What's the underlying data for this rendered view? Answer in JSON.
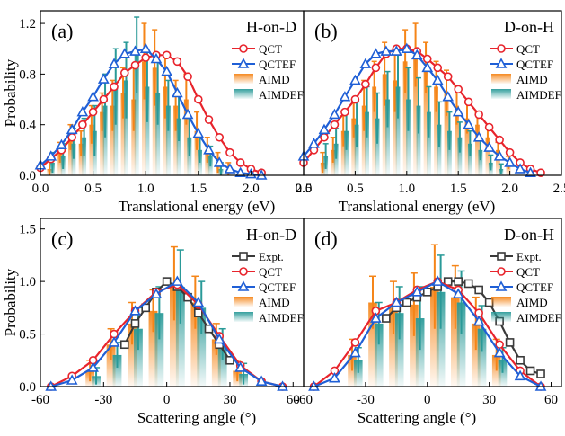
{
  "colors": {
    "qct": "#e8242c",
    "qctef": "#1f5fd6",
    "aimd": "#f58518",
    "aimdef": "#2a9a98",
    "expt": "#3a3a3a"
  },
  "chart_data": [
    {
      "type": "bar",
      "panel_label": "(a)",
      "system": "H-on-D",
      "xlabel": "Translational energy (eV)",
      "ylabel": "Probability",
      "xlim": [
        0,
        2.5
      ],
      "ylim": [
        0,
        1.3
      ],
      "xticks": [
        "0.0",
        "0.5",
        "1.0",
        "1.5",
        "2.0",
        "2.5"
      ],
      "yticks": [
        "0.0",
        "0.4",
        "0.8",
        "1.2"
      ],
      "xtick_values": [
        0,
        0.5,
        1,
        1.5,
        2,
        2.5
      ],
      "ytick_values": [
        0,
        0.4,
        0.8,
        1.2
      ],
      "legend": [
        "QCT",
        "QCTEF",
        "AIMD",
        "AIMDEF"
      ],
      "series": [
        {
          "name": "QCT",
          "kind": "line",
          "marker": "circle",
          "x": [
            0.0,
            0.1,
            0.2,
            0.3,
            0.4,
            0.5,
            0.6,
            0.7,
            0.8,
            0.9,
            1.0,
            1.1,
            1.2,
            1.3,
            1.4,
            1.5,
            1.6,
            1.7,
            1.8,
            1.9,
            2.0,
            2.1
          ],
          "y": [
            0.06,
            0.13,
            0.2,
            0.3,
            0.4,
            0.5,
            0.6,
            0.7,
            0.81,
            0.87,
            0.93,
            0.95,
            0.95,
            0.9,
            0.78,
            0.6,
            0.44,
            0.3,
            0.18,
            0.1,
            0.05,
            0.02
          ]
        },
        {
          "name": "QCTEF",
          "kind": "line",
          "marker": "triangle",
          "x": [
            0.0,
            0.1,
            0.2,
            0.3,
            0.4,
            0.5,
            0.6,
            0.7,
            0.8,
            0.9,
            1.0,
            1.1,
            1.2,
            1.3,
            1.4,
            1.5,
            1.6,
            1.7,
            1.8,
            1.9,
            2.0,
            2.1
          ],
          "y": [
            0.08,
            0.15,
            0.24,
            0.36,
            0.5,
            0.62,
            0.76,
            0.88,
            0.96,
            0.98,
            1.0,
            0.92,
            0.82,
            0.65,
            0.48,
            0.33,
            0.2,
            0.1,
            0.05,
            0.02,
            0.01,
            0.0
          ]
        },
        {
          "name": "AIMD",
          "kind": "bar",
          "x": [
            0.1,
            0.2,
            0.3,
            0.4,
            0.5,
            0.6,
            0.7,
            0.8,
            0.9,
            1.0,
            1.1,
            1.2,
            1.3,
            1.4,
            1.5,
            1.6,
            1.7,
            1.8
          ],
          "y": [
            0.05,
            0.18,
            0.3,
            0.25,
            0.4,
            0.5,
            0.55,
            0.65,
            0.6,
            0.9,
            0.85,
            0.7,
            0.55,
            0.6,
            0.35,
            0.2,
            0.1,
            0.05
          ],
          "err": [
            0.06,
            0.08,
            0.1,
            0.1,
            0.15,
            0.15,
            0.2,
            0.2,
            0.25,
            0.3,
            0.3,
            0.25,
            0.2,
            0.2,
            0.15,
            0.1,
            0.08,
            0.05
          ]
        },
        {
          "name": "AIMDEF",
          "kind": "bar",
          "x": [
            0.1,
            0.2,
            0.3,
            0.4,
            0.5,
            0.6,
            0.7,
            0.8,
            0.9,
            1.0,
            1.1,
            1.2,
            1.3,
            1.4,
            1.5,
            1.6,
            1.7
          ],
          "y": [
            0.1,
            0.15,
            0.25,
            0.3,
            0.35,
            0.55,
            0.7,
            0.75,
            0.95,
            0.7,
            0.65,
            0.55,
            0.45,
            0.3,
            0.2,
            0.15,
            0.05
          ],
          "err": [
            0.08,
            0.1,
            0.12,
            0.15,
            0.2,
            0.25,
            0.3,
            0.3,
            0.3,
            0.28,
            0.25,
            0.2,
            0.18,
            0.15,
            0.1,
            0.08,
            0.05
          ]
        }
      ]
    },
    {
      "type": "bar",
      "panel_label": "(b)",
      "system": "D-on-H",
      "xlabel": "Translational energy (eV)",
      "ylabel": "",
      "xlim": [
        0,
        2.5
      ],
      "ylim": [
        0,
        1.3
      ],
      "xticks": [
        "0.0",
        "0.5",
        "1.0",
        "1.5",
        "2.0",
        "2.5"
      ],
      "yticks": [],
      "xtick_values": [
        0,
        0.5,
        1,
        1.5,
        2,
        2.5
      ],
      "ytick_values": [],
      "legend": [
        "QCT",
        "QCTEF",
        "AIMD",
        "AIMDEF"
      ],
      "series": [
        {
          "name": "QCT",
          "kind": "line",
          "marker": "circle",
          "x": [
            0.0,
            0.1,
            0.2,
            0.3,
            0.4,
            0.5,
            0.6,
            0.7,
            0.8,
            0.9,
            1.0,
            1.1,
            1.2,
            1.3,
            1.4,
            1.5,
            1.6,
            1.7,
            1.8,
            1.9,
            2.0,
            2.1,
            2.2,
            2.3
          ],
          "y": [
            0.1,
            0.2,
            0.3,
            0.4,
            0.5,
            0.6,
            0.72,
            0.85,
            0.96,
            1.0,
            1.0,
            0.98,
            0.92,
            0.85,
            0.78,
            0.68,
            0.58,
            0.48,
            0.38,
            0.28,
            0.18,
            0.1,
            0.05,
            0.02
          ]
        },
        {
          "name": "QCTEF",
          "kind": "line",
          "marker": "triangle",
          "x": [
            0.0,
            0.1,
            0.2,
            0.3,
            0.4,
            0.5,
            0.6,
            0.7,
            0.8,
            0.9,
            1.0,
            1.1,
            1.2,
            1.3,
            1.4,
            1.5,
            1.6,
            1.7,
            1.8,
            1.9,
            2.0,
            2.1,
            2.2
          ],
          "y": [
            0.15,
            0.25,
            0.36,
            0.48,
            0.62,
            0.75,
            0.88,
            0.96,
            0.98,
            0.98,
            1.0,
            0.95,
            0.85,
            0.75,
            0.62,
            0.5,
            0.4,
            0.3,
            0.22,
            0.15,
            0.1,
            0.05,
            0.02
          ]
        },
        {
          "name": "AIMD",
          "kind": "bar",
          "x": [
            0.2,
            0.3,
            0.4,
            0.5,
            0.6,
            0.7,
            0.8,
            0.9,
            1.0,
            1.1,
            1.2,
            1.3,
            1.4,
            1.5,
            1.6,
            1.7,
            1.8,
            1.9,
            2.0
          ],
          "y": [
            0.1,
            0.2,
            0.35,
            0.45,
            0.55,
            0.7,
            0.8,
            0.75,
            0.9,
            0.95,
            0.85,
            0.7,
            0.65,
            0.55,
            0.45,
            0.4,
            0.3,
            0.2,
            0.1
          ],
          "err": [
            0.08,
            0.1,
            0.12,
            0.15,
            0.2,
            0.2,
            0.25,
            0.25,
            0.25,
            0.25,
            0.2,
            0.2,
            0.18,
            0.15,
            0.12,
            0.1,
            0.08,
            0.06,
            0.05
          ]
        },
        {
          "name": "AIMDEF",
          "kind": "bar",
          "x": [
            0.2,
            0.3,
            0.4,
            0.5,
            0.6,
            0.7,
            0.8,
            0.9,
            1.0,
            1.1,
            1.2,
            1.3,
            1.4,
            1.5,
            1.6,
            1.7,
            1.8,
            1.9
          ],
          "y": [
            0.15,
            0.25,
            0.35,
            0.4,
            0.5,
            0.45,
            0.6,
            0.7,
            0.6,
            0.55,
            0.5,
            0.4,
            0.35,
            0.3,
            0.25,
            0.2,
            0.1,
            0.05
          ],
          "err": [
            0.1,
            0.12,
            0.15,
            0.18,
            0.2,
            0.2,
            0.22,
            0.25,
            0.25,
            0.22,
            0.2,
            0.18,
            0.15,
            0.12,
            0.1,
            0.08,
            0.06,
            0.04
          ]
        }
      ]
    },
    {
      "type": "bar",
      "panel_label": "(c)",
      "system": "H-on-D",
      "xlabel": "Scattering angle (°)",
      "ylabel": "Probability",
      "xlim": [
        -60,
        65
      ],
      "ylim": [
        0,
        1.6
      ],
      "xticks": [
        "-60",
        "-30",
        "0",
        "30",
        "60"
      ],
      "yticks": [
        "0.0",
        "0.5",
        "1.0",
        "1.5"
      ],
      "xtick_values": [
        -60,
        -30,
        0,
        30,
        60
      ],
      "ytick_values": [
        0,
        0.5,
        1.0,
        1.5
      ],
      "legend": [
        "Expt.",
        "QCT",
        "QCTEF",
        "AIMD",
        "AIMDEF"
      ],
      "series": [
        {
          "name": "Expt.",
          "kind": "line",
          "marker": "square",
          "x": [
            -20,
            -15,
            -10,
            -5,
            0,
            5,
            10,
            15,
            20,
            25,
            30
          ],
          "y": [
            0.4,
            0.6,
            0.75,
            0.9,
            1.0,
            0.95,
            0.85,
            0.7,
            0.55,
            0.4,
            0.25
          ]
        },
        {
          "name": "QCT",
          "kind": "line",
          "marker": "circle",
          "x": [
            -55,
            -45,
            -35,
            -25,
            -15,
            -5,
            5,
            15,
            25,
            35,
            45,
            55
          ],
          "y": [
            0.0,
            0.1,
            0.25,
            0.5,
            0.72,
            0.9,
            0.97,
            0.78,
            0.48,
            0.2,
            0.05,
            0.0
          ]
        },
        {
          "name": "QCTEF",
          "kind": "line",
          "marker": "triangle",
          "x": [
            -55,
            -45,
            -35,
            -25,
            -15,
            -5,
            5,
            15,
            25,
            35,
            45,
            55
          ],
          "y": [
            0.0,
            0.06,
            0.18,
            0.42,
            0.72,
            0.88,
            1.0,
            0.8,
            0.45,
            0.18,
            0.05,
            0.0
          ]
        },
        {
          "name": "AIMD",
          "kind": "bar",
          "x": [
            -35,
            -25,
            -15,
            -5,
            5,
            15,
            25,
            35
          ],
          "y": [
            0.15,
            0.4,
            0.6,
            0.72,
            0.98,
            0.8,
            0.45,
            0.15
          ],
          "err": [
            0.1,
            0.15,
            0.2,
            0.2,
            0.35,
            0.25,
            0.15,
            0.1
          ]
        },
        {
          "name": "AIMDEF",
          "kind": "bar",
          "x": [
            -35,
            -25,
            -15,
            -5,
            5,
            15,
            25,
            35
          ],
          "y": [
            0.1,
            0.3,
            0.55,
            0.7,
            0.95,
            0.75,
            0.4,
            0.12
          ],
          "err": [
            0.08,
            0.12,
            0.2,
            0.25,
            0.35,
            0.25,
            0.15,
            0.1
          ]
        }
      ]
    },
    {
      "type": "bar",
      "panel_label": "(d)",
      "system": "D-on-H",
      "xlabel": "Scattering angle (°)",
      "ylabel": "",
      "xlim": [
        -60,
        65
      ],
      "ylim": [
        0,
        1.6
      ],
      "xticks": [
        "-60",
        "-30",
        "0",
        "30",
        "60"
      ],
      "yticks": [],
      "xtick_values": [
        -60,
        -30,
        0,
        30,
        60
      ],
      "ytick_values": [],
      "legend": [
        "Expt.",
        "QCT",
        "QCTEF",
        "AIMD",
        "AIMDEF"
      ],
      "series": [
        {
          "name": "Expt.",
          "kind": "line",
          "marker": "square",
          "x": [
            -20,
            -15,
            -10,
            -5,
            0,
            5,
            10,
            15,
            20,
            25,
            30,
            35,
            40,
            45,
            50,
            55
          ],
          "y": [
            0.65,
            0.75,
            0.8,
            0.85,
            0.9,
            0.95,
            1.0,
            1.0,
            0.98,
            0.92,
            0.8,
            0.62,
            0.42,
            0.25,
            0.15,
            0.12
          ]
        },
        {
          "name": "QCT",
          "kind": "line",
          "marker": "circle",
          "x": [
            -55,
            -45,
            -35,
            -25,
            -15,
            -5,
            5,
            15,
            25,
            35,
            45,
            55
          ],
          "y": [
            0.0,
            0.15,
            0.42,
            0.72,
            0.8,
            0.92,
            1.0,
            0.92,
            0.7,
            0.4,
            0.15,
            0.0
          ]
        },
        {
          "name": "QCTEF",
          "kind": "line",
          "marker": "triangle",
          "x": [
            -55,
            -45,
            -35,
            -25,
            -15,
            -5,
            5,
            15,
            25,
            35,
            45,
            55
          ],
          "y": [
            0.0,
            0.08,
            0.32,
            0.65,
            0.8,
            0.9,
            1.0,
            0.88,
            0.62,
            0.32,
            0.1,
            0.0
          ]
        },
        {
          "name": "AIMD",
          "kind": "bar",
          "x": [
            -35,
            -25,
            -15,
            -5,
            5,
            15,
            25,
            35
          ],
          "y": [
            0.3,
            0.8,
            0.75,
            0.78,
            0.95,
            0.85,
            0.6,
            0.3
          ],
          "err": [
            0.15,
            0.25,
            0.25,
            0.3,
            0.4,
            0.3,
            0.25,
            0.15
          ]
        },
        {
          "name": "AIMDEF",
          "kind": "bar",
          "x": [
            -35,
            -25,
            -15,
            -5,
            5,
            15,
            25,
            35
          ],
          "y": [
            0.25,
            0.6,
            0.7,
            0.65,
            0.9,
            0.8,
            0.55,
            0.25
          ],
          "err": [
            0.12,
            0.2,
            0.25,
            0.3,
            0.35,
            0.3,
            0.22,
            0.12
          ]
        }
      ]
    }
  ]
}
